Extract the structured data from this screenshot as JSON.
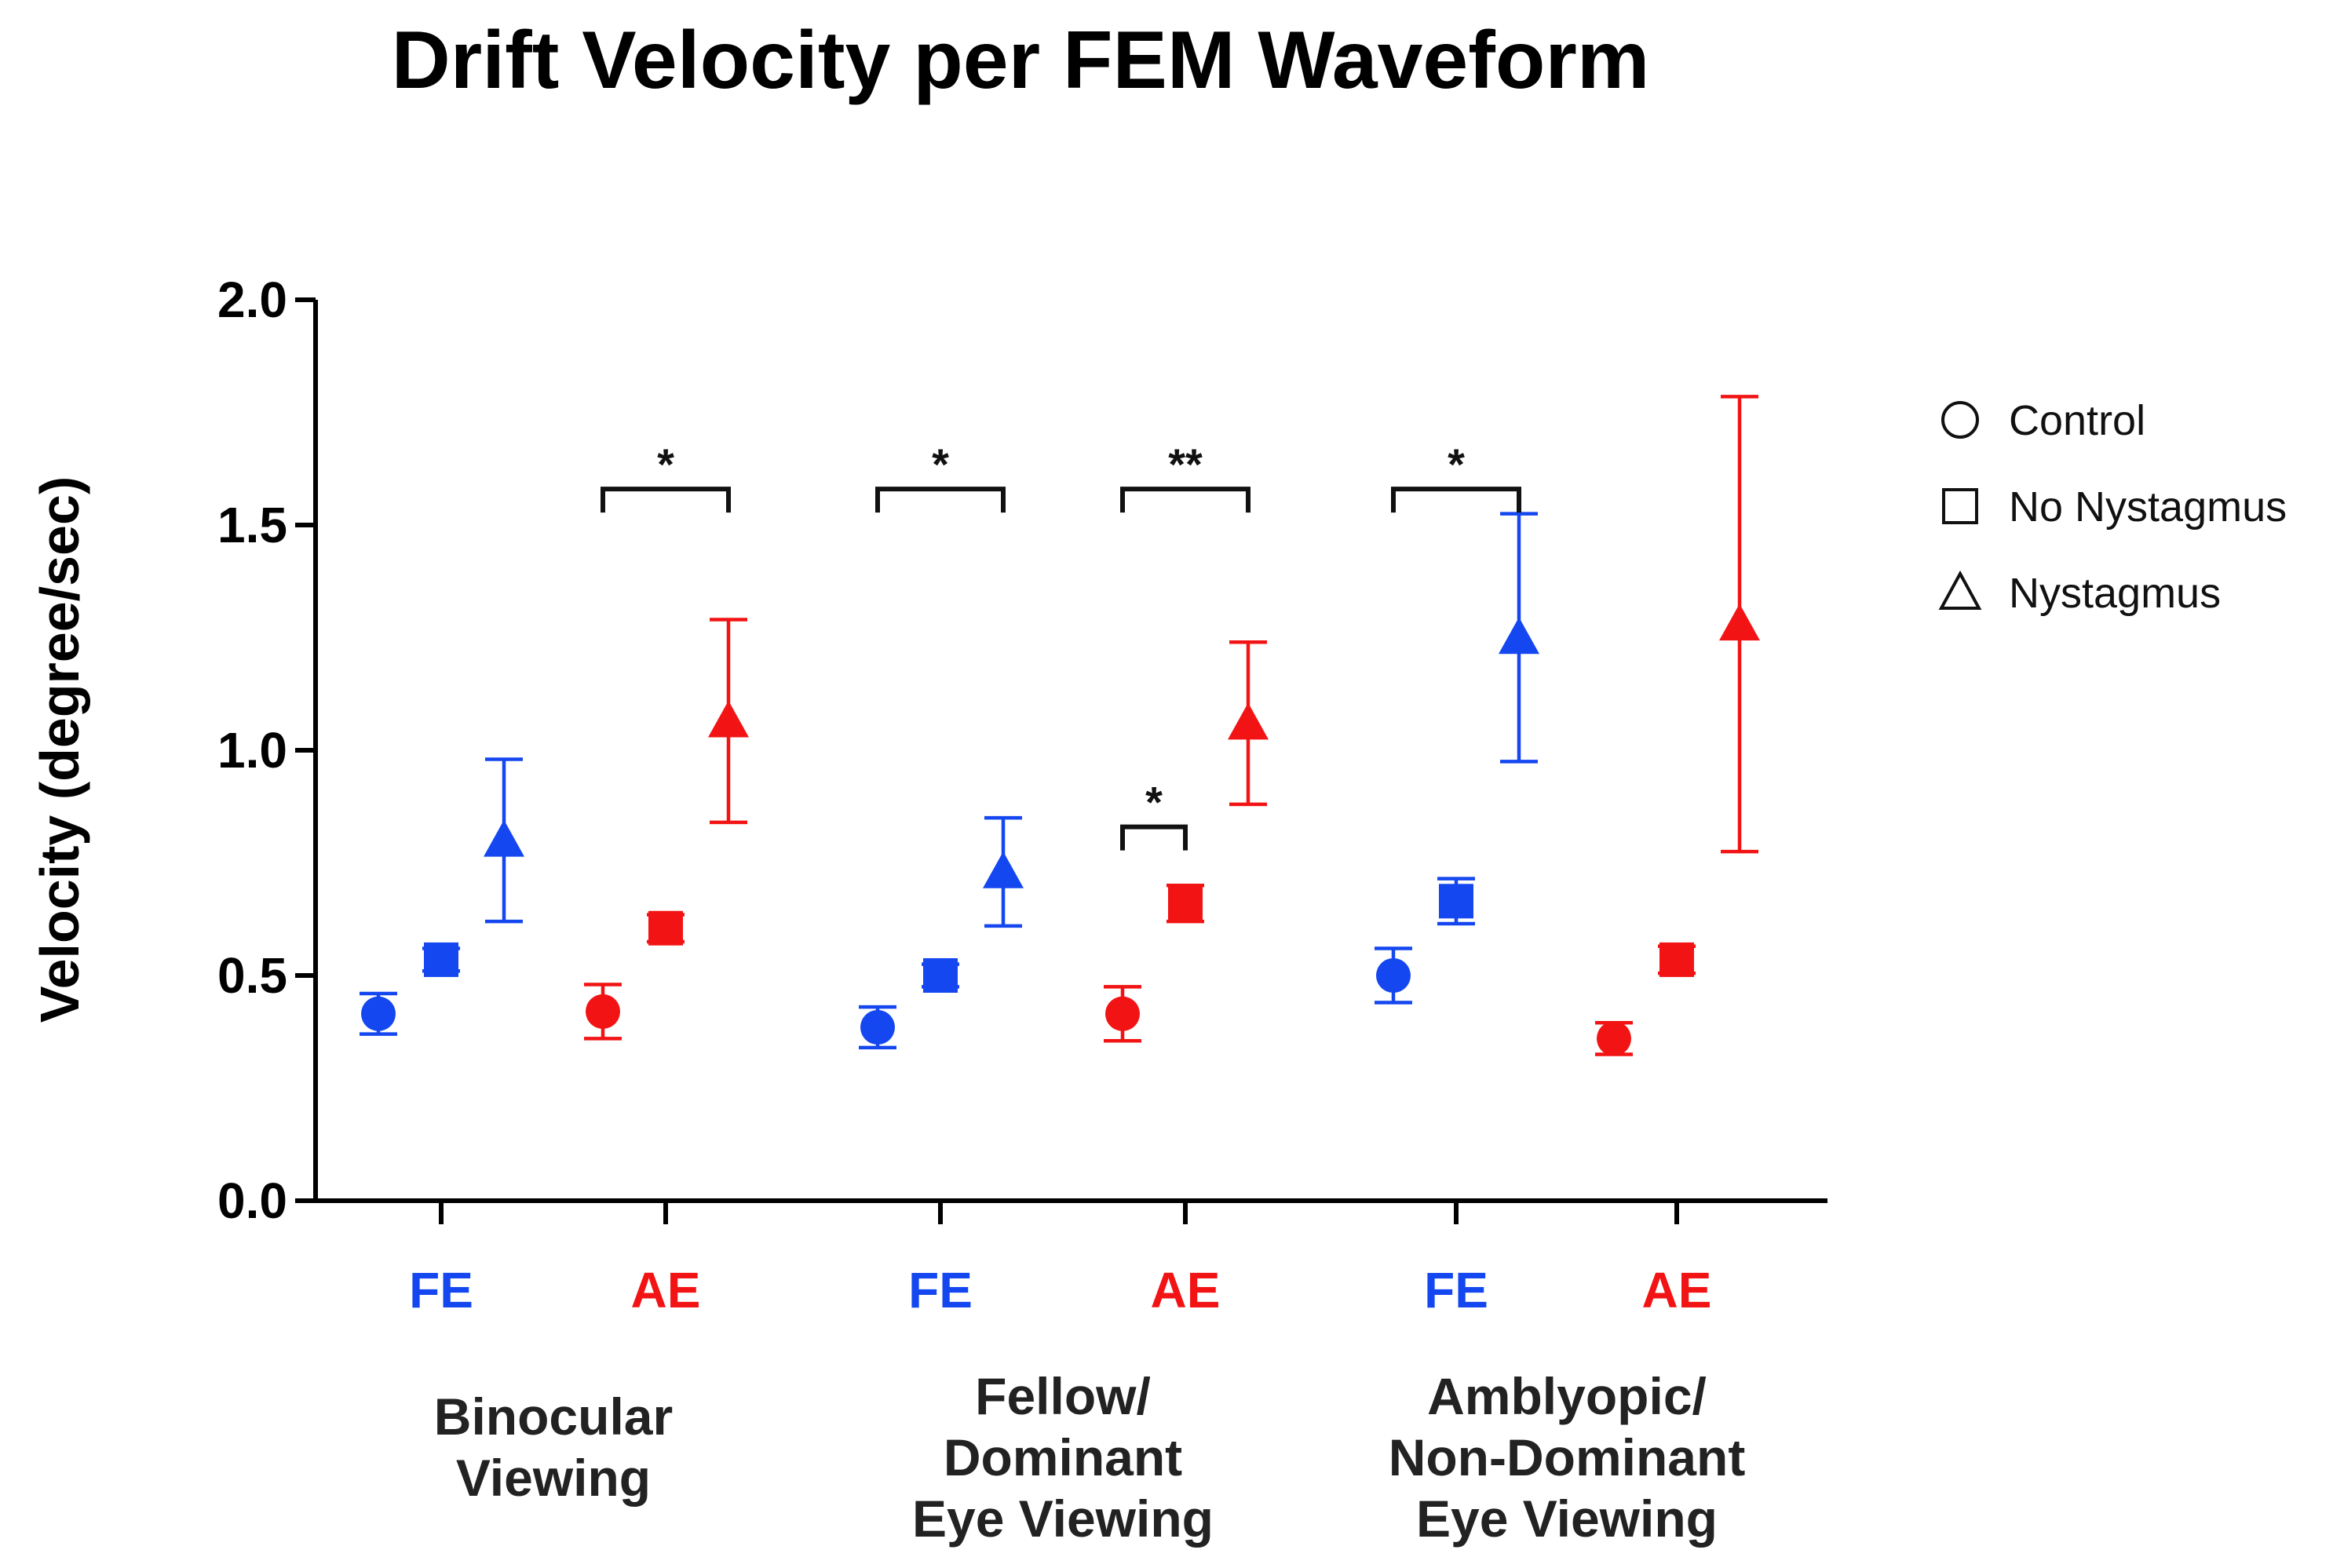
{
  "chart_data": {
    "type": "scatter",
    "title": "Drift Velocity per FEM Waveform",
    "ylabel": "Velocity (degree/sec)",
    "xlabel": "",
    "ylim": [
      0,
      2.0
    ],
    "yticks": [
      0.0,
      0.5,
      1.0,
      1.5,
      2.0
    ],
    "ytick_labels": [
      "0.0",
      "0.5",
      "1.0",
      "1.5",
      "2.0"
    ],
    "colors": {
      "FE": "#1447f0",
      "AE": "#f21414"
    },
    "legend": [
      {
        "label": "Control",
        "marker": "circle"
      },
      {
        "label": "No Nystagmus",
        "marker": "square"
      },
      {
        "label": "Nystagmus",
        "marker": "triangle"
      }
    ],
    "categories": [
      {
        "label": "FE",
        "eye": "FE",
        "group": 0
      },
      {
        "label": "AE",
        "eye": "AE",
        "group": 0
      },
      {
        "label": "FE",
        "eye": "FE",
        "group": 1
      },
      {
        "label": "AE",
        "eye": "AE",
        "group": 1
      },
      {
        "label": "FE",
        "eye": "FE",
        "group": 2
      },
      {
        "label": "AE",
        "eye": "AE",
        "group": 2
      }
    ],
    "groups": [
      {
        "lines": [
          "Binocular",
          "Viewing"
        ]
      },
      {
        "lines": [
          "Fellow/",
          "Dominant",
          "Eye Viewing"
        ]
      },
      {
        "lines": [
          "Amblyopic/",
          "Non-Dominant",
          "Eye Viewing"
        ]
      }
    ],
    "series": [
      {
        "name": "Control",
        "marker": "circle",
        "values": [
          0.415,
          0.42,
          0.385,
          0.415,
          0.5,
          0.36
        ],
        "errors": [
          0.045,
          0.06,
          0.045,
          0.06,
          0.06,
          0.035
        ]
      },
      {
        "name": "No Nystagmus",
        "marker": "square",
        "values": [
          0.535,
          0.605,
          0.5,
          0.66,
          0.665,
          0.535
        ],
        "errors": [
          0.025,
          0.03,
          0.025,
          0.04,
          0.05,
          0.03
        ]
      },
      {
        "name": "Nystagmus",
        "marker": "triangle",
        "values": [
          0.8,
          1.065,
          0.73,
          1.06,
          1.25,
          1.28
        ],
        "errors": [
          0.18,
          0.225,
          0.12,
          0.18,
          0.275,
          0.505
        ]
      }
    ],
    "significance": [
      {
        "label": "*",
        "from_category": 1,
        "from_series": 0,
        "to_category": 1,
        "to_series": 2,
        "level": 1.58
      },
      {
        "label": "*",
        "from_category": 2,
        "from_series": 0,
        "to_category": 2,
        "to_series": 2,
        "level": 1.58
      },
      {
        "label": "**",
        "from_category": 3,
        "from_series": 0,
        "to_category": 3,
        "to_series": 2,
        "level": 1.58
      },
      {
        "label": "*",
        "from_category": 4,
        "from_series": 0,
        "to_category": 4,
        "to_series": 2,
        "level": 1.58
      },
      {
        "label": "*",
        "from_category": 3,
        "from_series": 0,
        "to_category": 3,
        "to_series": 1,
        "level": 0.83
      }
    ]
  }
}
